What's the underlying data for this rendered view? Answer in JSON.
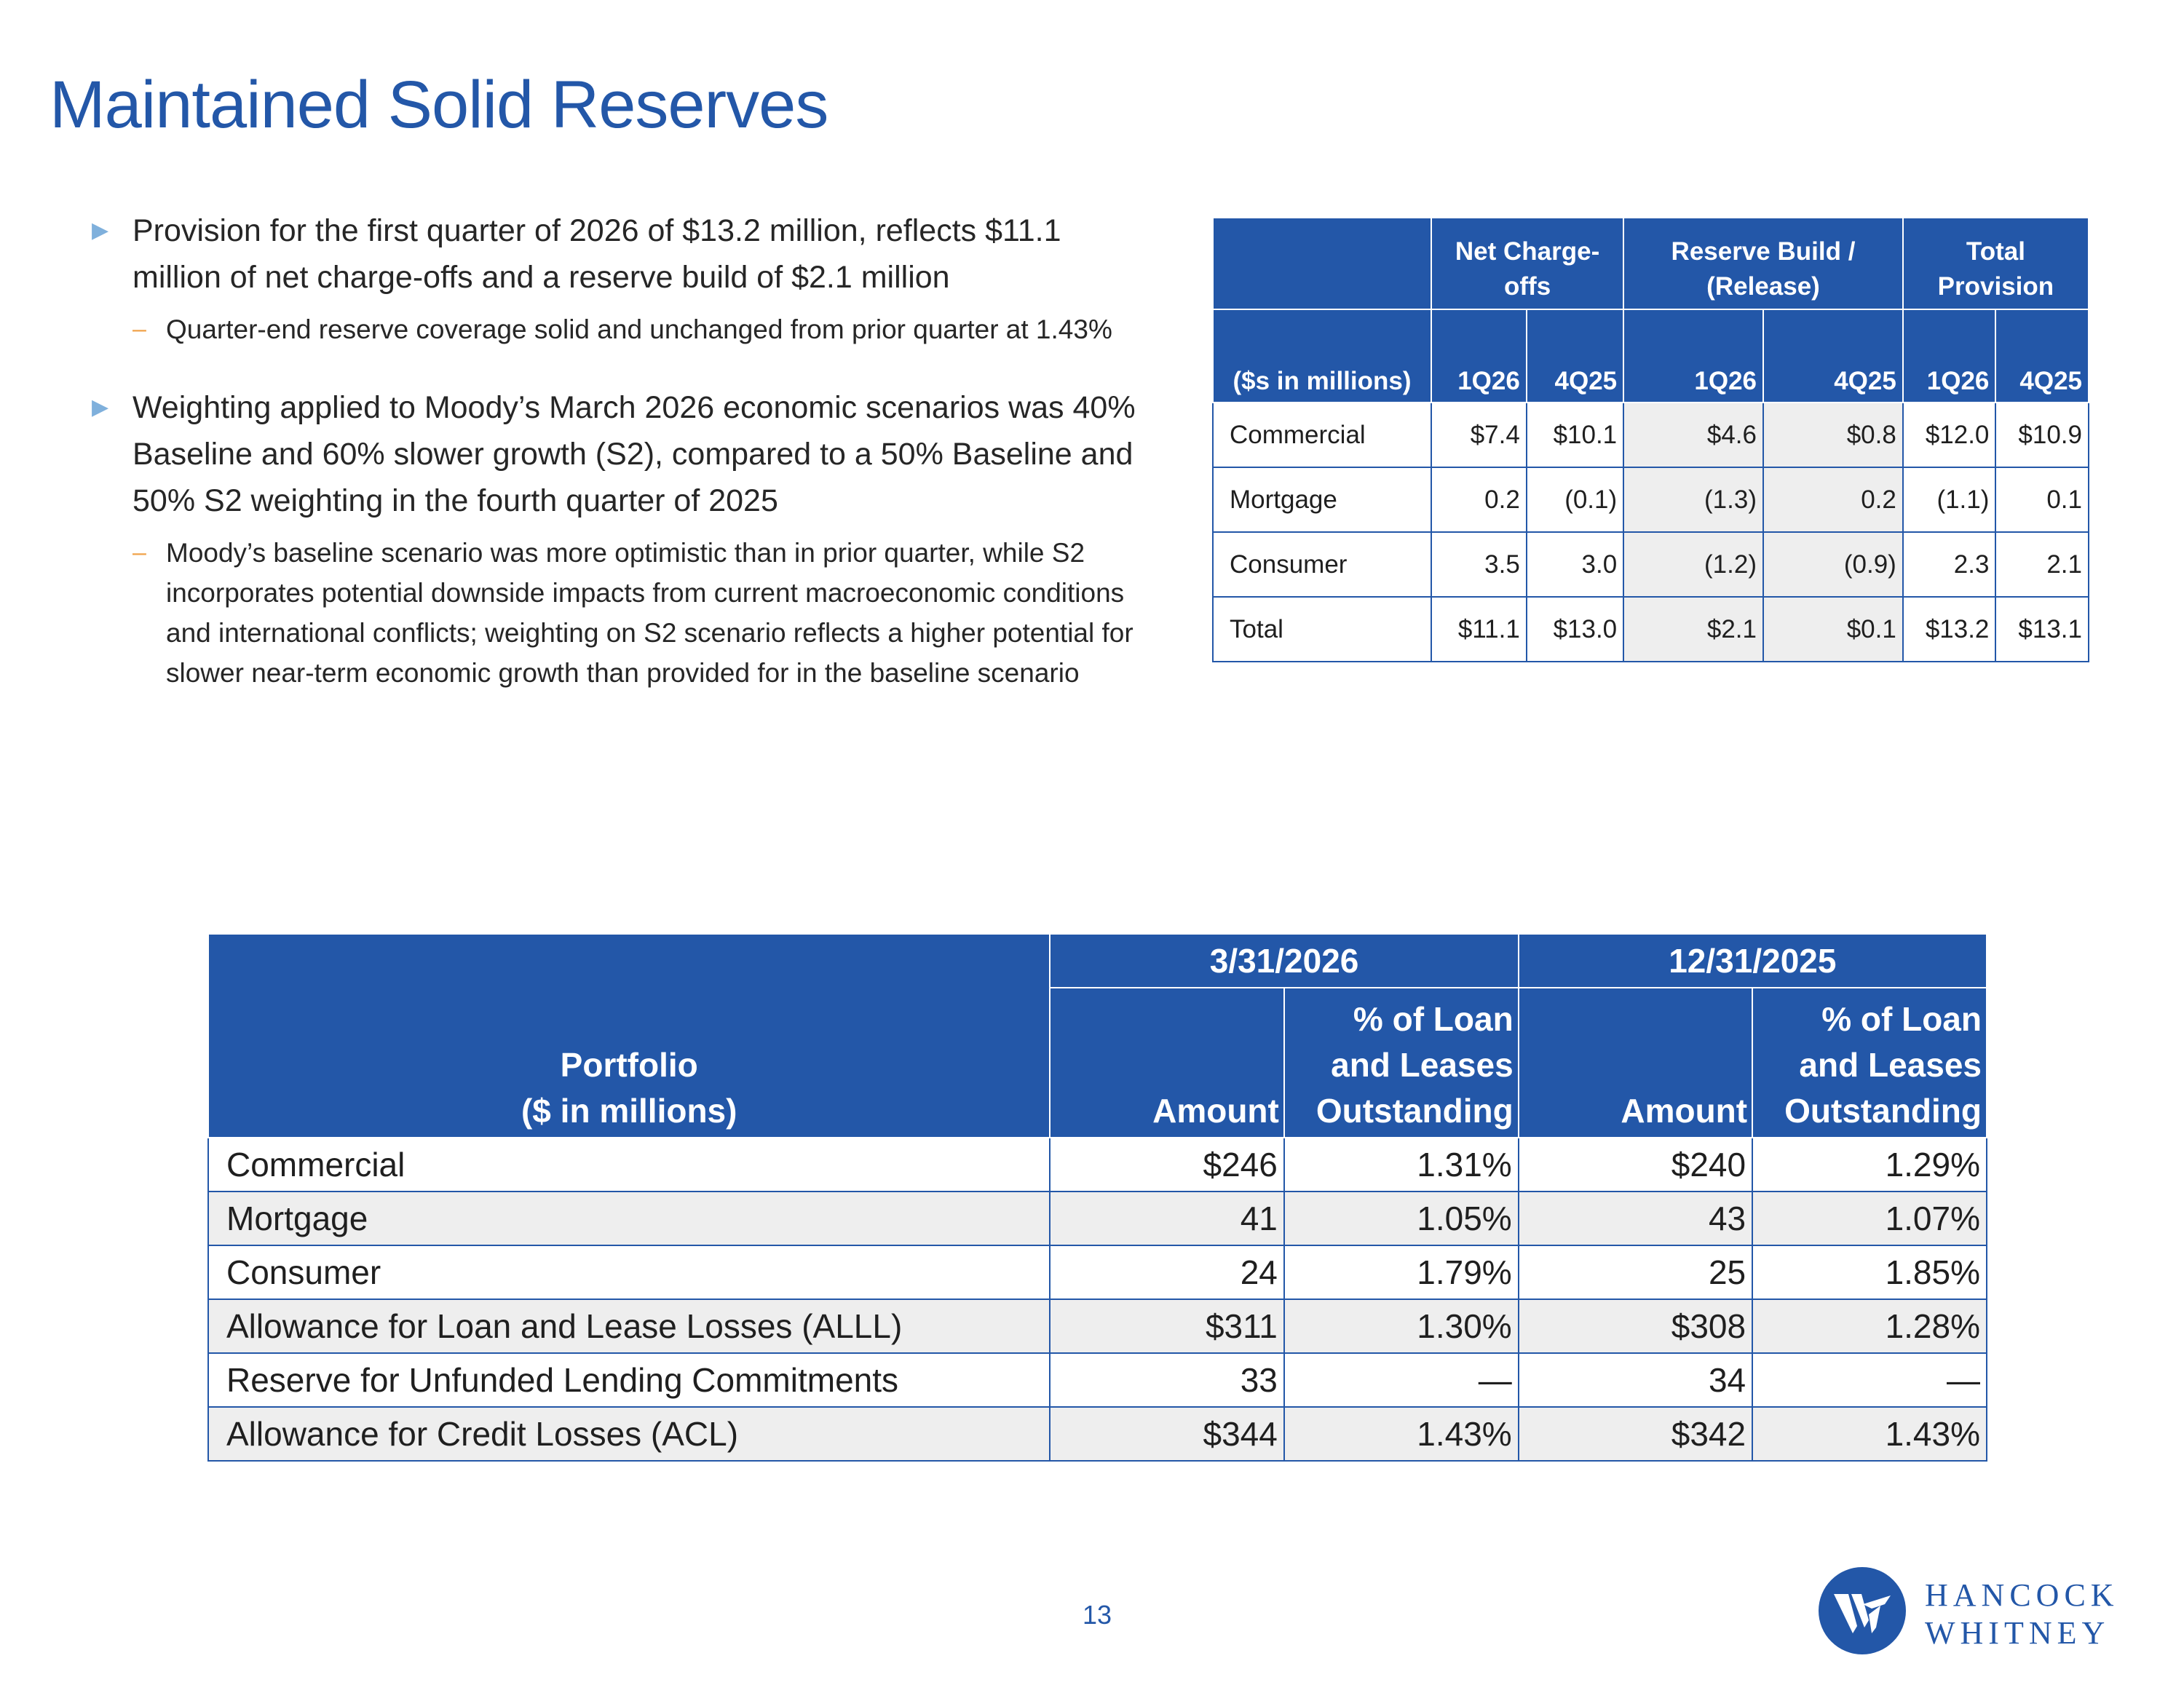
{
  "title": "Maintained Solid Reserves",
  "bullets": [
    {
      "text": "Provision for the first quarter of 2026 of $13.2 million, reflects $11.1 million of net charge-offs and a reserve build of $2.1 million",
      "sub": "Quarter-end reserve coverage solid and unchanged from prior quarter at 1.43%"
    },
    {
      "text": "Weighting applied to Moody’s March 2026 economic scenarios was 40% Baseline and 60% slower growth (S2), compared to a 50% Baseline and 50% S2 weighting in the fourth quarter of 2025",
      "sub": "Moody’s baseline scenario was more optimistic than in prior quarter, while S2 incorporates potential downside impacts from current macroeconomic conditions and international conflicts; weighting on S2 scenario reflects a higher potential for slower near-term economic growth than provided for in the baseline scenario"
    }
  ],
  "provision_table": {
    "group_headers": [
      "Net Charge-offs",
      "Reserve Build / (Release)",
      "Total Provision"
    ],
    "label_header": "($s in millions)",
    "periods": [
      "1Q26",
      "4Q25",
      "1Q26",
      "4Q25",
      "1Q26",
      "4Q25"
    ],
    "rows": [
      {
        "label": "Commercial",
        "values": [
          "$7.4",
          "$10.1",
          "$4.6",
          "$0.8",
          "$12.0",
          "$10.9"
        ]
      },
      {
        "label": "Mortgage",
        "values": [
          "0.2",
          "(0.1)",
          "(1.3)",
          "0.2",
          "(1.1)",
          "0.1"
        ]
      },
      {
        "label": "Consumer",
        "values": [
          "3.5",
          "3.0",
          "(1.2)",
          "(0.9)",
          "2.3",
          "2.1"
        ]
      },
      {
        "label": "Total",
        "values": [
          "$11.1",
          "$13.0",
          "$2.1",
          "$0.1",
          "$13.2",
          "$13.1"
        ]
      }
    ]
  },
  "portfolio_table": {
    "label_header_line1": "Portfolio",
    "label_header_line2": "($ in millions)",
    "dates": [
      "3/31/2026",
      "12/31/2025"
    ],
    "amount_header": "Amount",
    "pct_header": "% of Loan and Leases Outstanding",
    "rows": [
      {
        "label": "Commercial",
        "values": [
          "$246",
          "1.31%",
          "$240",
          "1.29%"
        ]
      },
      {
        "label": "Mortgage",
        "values": [
          "41",
          "1.05%",
          "43",
          "1.07%"
        ]
      },
      {
        "label": "Consumer",
        "values": [
          "24",
          "1.79%",
          "25",
          "1.85%"
        ]
      },
      {
        "label": "Allowance for Loan and Lease Losses (ALLL)",
        "values": [
          "$311",
          "1.30%",
          "$308",
          "1.28%"
        ]
      },
      {
        "label": "Reserve for Unfunded Lending Commitments",
        "values": [
          "33",
          "—",
          "34",
          "—"
        ]
      },
      {
        "label": "Allowance for Credit Losses (ACL)",
        "values": [
          "$344",
          "1.43%",
          "$342",
          "1.43%"
        ]
      }
    ]
  },
  "page_number": "13",
  "logo": {
    "line1": "HANCOCK",
    "line2": "WHITNEY",
    "color": "#2357a8"
  }
}
